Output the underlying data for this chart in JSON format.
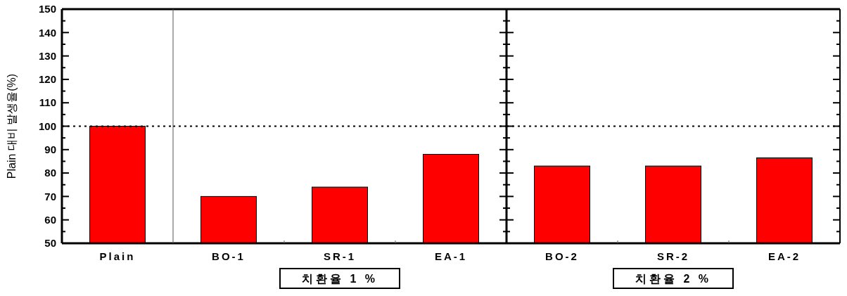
{
  "chart_data": [
    {
      "type": "bar",
      "ylabel": "Plain 대비 발생율(%)",
      "categories": [
        "Plain"
      ],
      "values": [
        100
      ],
      "color": "#ff0000",
      "ylim": [
        50,
        150
      ],
      "yticks": [
        50,
        60,
        70,
        80,
        90,
        100,
        110,
        120,
        130,
        140,
        150
      ],
      "grid": false,
      "ref_lines": [
        {
          "axis": "y",
          "value": 100,
          "line_style": "dotted"
        }
      ]
    },
    {
      "type": "bar",
      "categories": [
        "BO-1",
        "SR-1",
        "EA-1"
      ],
      "values": [
        70,
        74,
        88
      ],
      "color": "#ff0000",
      "ylim": [
        50,
        150
      ],
      "yticks": [
        50,
        60,
        70,
        80,
        90,
        100,
        110,
        120,
        130,
        140,
        150
      ],
      "tick_labels": "x",
      "grid": false,
      "ref_lines": [
        {
          "axis": "y",
          "value": 100,
          "line_style": "dotted"
        }
      ],
      "annotations": [
        "치환율 1 %"
      ]
    },
    {
      "type": "bar",
      "categories": [
        "BO-2",
        "SR-2",
        "EA-2"
      ],
      "values": [
        83,
        83,
        86.5
      ],
      "color": "#ff0000",
      "ylim": [
        50,
        150
      ],
      "yticks": [
        50,
        60,
        70,
        80,
        90,
        100,
        110,
        120,
        130,
        140,
        150
      ],
      "tick_labels": "x",
      "grid": false,
      "ref_lines": [
        {
          "axis": "y",
          "value": 100,
          "line_style": "dotted"
        }
      ],
      "annotations": [
        "치환율 2 %"
      ]
    }
  ]
}
